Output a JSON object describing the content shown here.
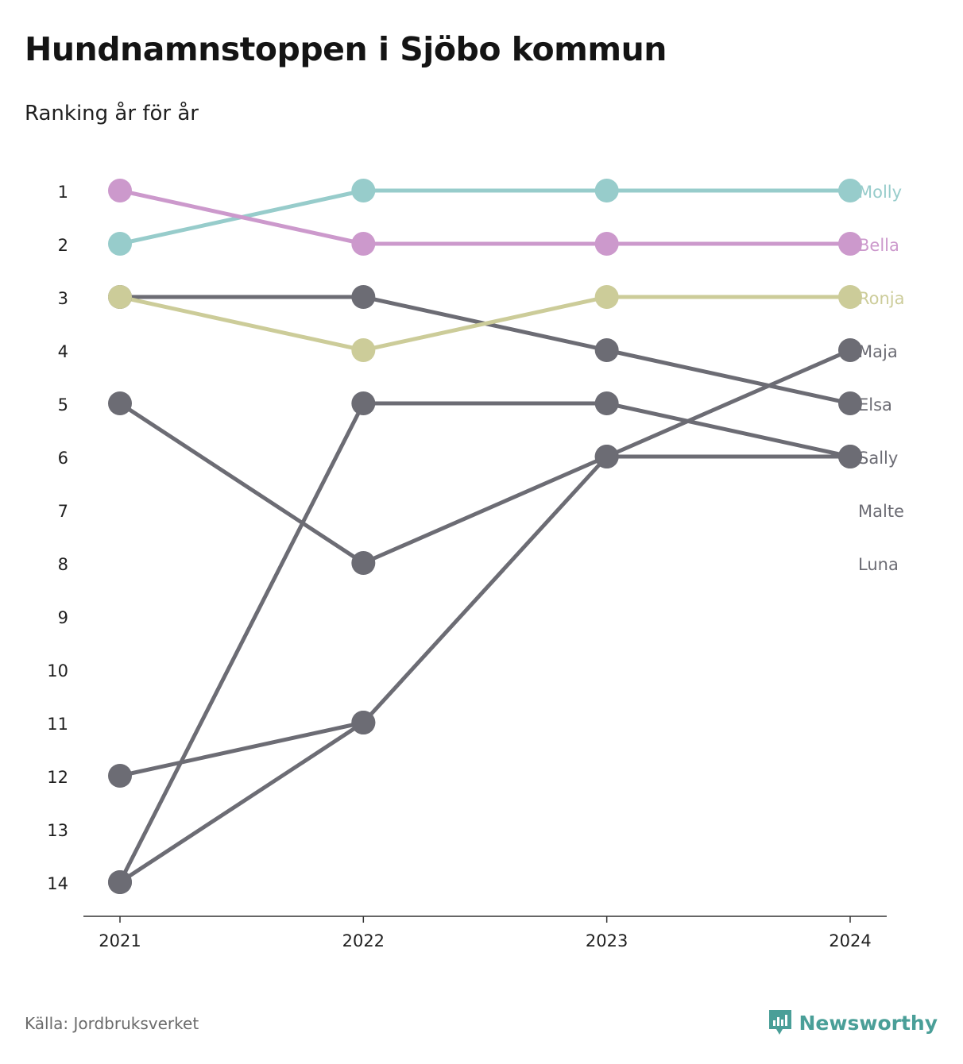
{
  "header": {
    "title": "Hundnamnstoppen i Sjöbo kommun",
    "subtitle": "Ranking år för år"
  },
  "footer": {
    "source": "Källa: Jordbruksverket",
    "brand": "Newsworthy",
    "brand_icon": "newsworthy-logo-icon"
  },
  "colors": {
    "teal": "#97cccb",
    "pink": "#cc99cc",
    "olive": "#cccc99",
    "gray": "#6c6c74",
    "brand": "#4a9f98"
  },
  "chart_data": {
    "type": "line",
    "subtype": "bump",
    "x": [
      "2021",
      "2022",
      "2023",
      "2024"
    ],
    "ylim": [
      1,
      14
    ],
    "y_reversed": true,
    "y_ticks": [
      "1",
      "2",
      "3",
      "4",
      "5",
      "6",
      "7",
      "8",
      "9",
      "10",
      "11",
      "12",
      "13",
      "14"
    ],
    "grid": false,
    "series": [
      {
        "name": "Molly",
        "color": "#97cccb",
        "values": [
          2,
          1,
          1,
          1
        ]
      },
      {
        "name": "Bella",
        "color": "#cc99cc",
        "values": [
          1,
          2,
          2,
          2
        ]
      },
      {
        "name": "Ronja",
        "color": "#cccc99",
        "values": [
          3,
          4,
          3,
          3
        ]
      },
      {
        "name": "Maja",
        "color": "#6c6c74",
        "values": [
          14,
          11,
          6,
          4
        ]
      },
      {
        "name": "Elsa",
        "color": "#6c6c74",
        "values": [
          3,
          3,
          4,
          5
        ]
      },
      {
        "name": "Sally",
        "color": "#6c6c74",
        "values": [
          5,
          8,
          6,
          6
        ]
      },
      {
        "name": "Malte",
        "color": "#6c6c74",
        "values": [
          12,
          11,
          null,
          null
        ]
      },
      {
        "name": "Luna",
        "color": "#6c6c74",
        "values": [
          14,
          5,
          5,
          6
        ]
      }
    ]
  }
}
